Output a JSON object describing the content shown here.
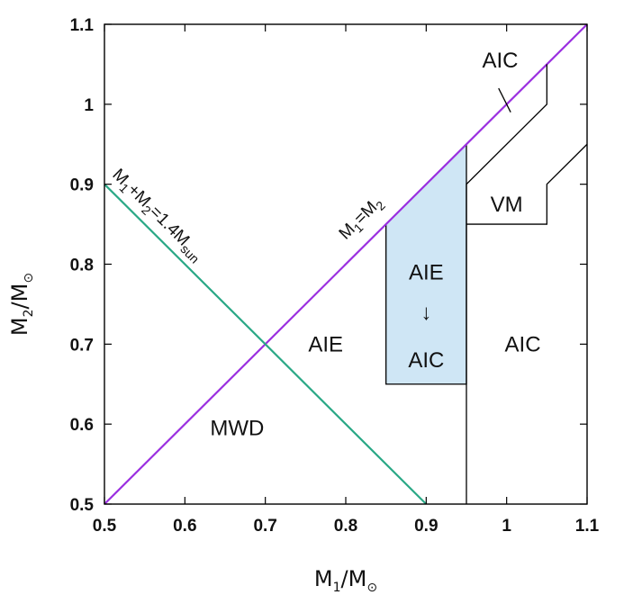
{
  "chart_data": {
    "type": "line",
    "xlim": [
      0.5,
      1.1
    ],
    "ylim": [
      0.5,
      1.1
    ],
    "xticks": [
      "0.5",
      "0.6",
      "0.7",
      "0.8",
      "0.9",
      "1",
      "1.1"
    ],
    "yticks": [
      "0.5",
      "0.6",
      "0.7",
      "0.8",
      "0.9",
      "1",
      "1.1"
    ],
    "xticks_v": [
      0.5,
      0.6,
      0.7,
      0.8,
      0.9,
      1.0,
      1.1
    ],
    "yticks_v": [
      0.5,
      0.6,
      0.7,
      0.8,
      0.9,
      1.0,
      1.1
    ],
    "xlabel": {
      "main": "M",
      "sub": "1",
      "rest": "/M",
      "sun": "⊙"
    },
    "ylabel": {
      "main": "M",
      "sub": "2",
      "rest": "/M",
      "sun": "⊙"
    },
    "colors": {
      "diagonal": "#9b30e0",
      "total_mass": "#2aa886",
      "frame": "#000000",
      "shade": "#cfe6f5",
      "boundary": "#000000"
    },
    "series": [
      {
        "name": "M1=M2",
        "x": [
          0.5,
          1.1
        ],
        "y": [
          0.5,
          1.1
        ]
      },
      {
        "name": "M1+M2=1.4Msun",
        "x": [
          0.5,
          0.9
        ],
        "y": [
          0.9,
          0.5
        ]
      },
      {
        "name": "AIC boundary",
        "x": [
          0.95,
          0.95,
          0.95,
          1.05,
          1.05
        ],
        "y": [
          0.5,
          0.9,
          0.9,
          1.0,
          1.05
        ]
      },
      {
        "name": "VM boundary",
        "x": [
          0.95,
          1.05,
          1.05,
          1.1
        ],
        "y": [
          0.85,
          0.85,
          0.9,
          0.95
        ]
      },
      {
        "name": "AIC tick",
        "x": [
          0.99,
          1.005
        ],
        "y": [
          1.02,
          0.99
        ]
      }
    ],
    "shaded_region": {
      "x": [
        0.85,
        0.95
      ],
      "y_bottom": 0.65,
      "y_top_left": 0.85,
      "y_top_right": 0.95
    },
    "labels": {
      "diag_main": "M",
      "diag_sub1": "1",
      "diag_eq": "=M",
      "diag_sub2": "2",
      "tm_m1": "M",
      "tm_sub1": "1",
      "tm_plus": "+M",
      "tm_sub2": "2",
      "tm_rest": "=1.4M",
      "tm_sun": "sun",
      "region_mwd": "MWD",
      "region_aie": "AIE",
      "region_aie_shaded": "AIE",
      "arrow": "↓",
      "region_aic_shaded": "AIC",
      "region_aic_right": "AIC",
      "region_aic_top": "AIC",
      "region_vm": "VM"
    },
    "label_pos": {
      "region_mwd": [
        0.665,
        0.595
      ],
      "region_aie": [
        0.775,
        0.7
      ],
      "region_aie_shaded": [
        0.9,
        0.79
      ],
      "arrow": [
        0.9,
        0.74
      ],
      "region_aic_shaded": [
        0.9,
        0.68
      ],
      "region_aic_right": [
        1.02,
        0.7
      ],
      "region_aic_top": [
        0.992,
        1.055
      ],
      "region_vm": [
        1.0,
        0.875
      ]
    }
  }
}
